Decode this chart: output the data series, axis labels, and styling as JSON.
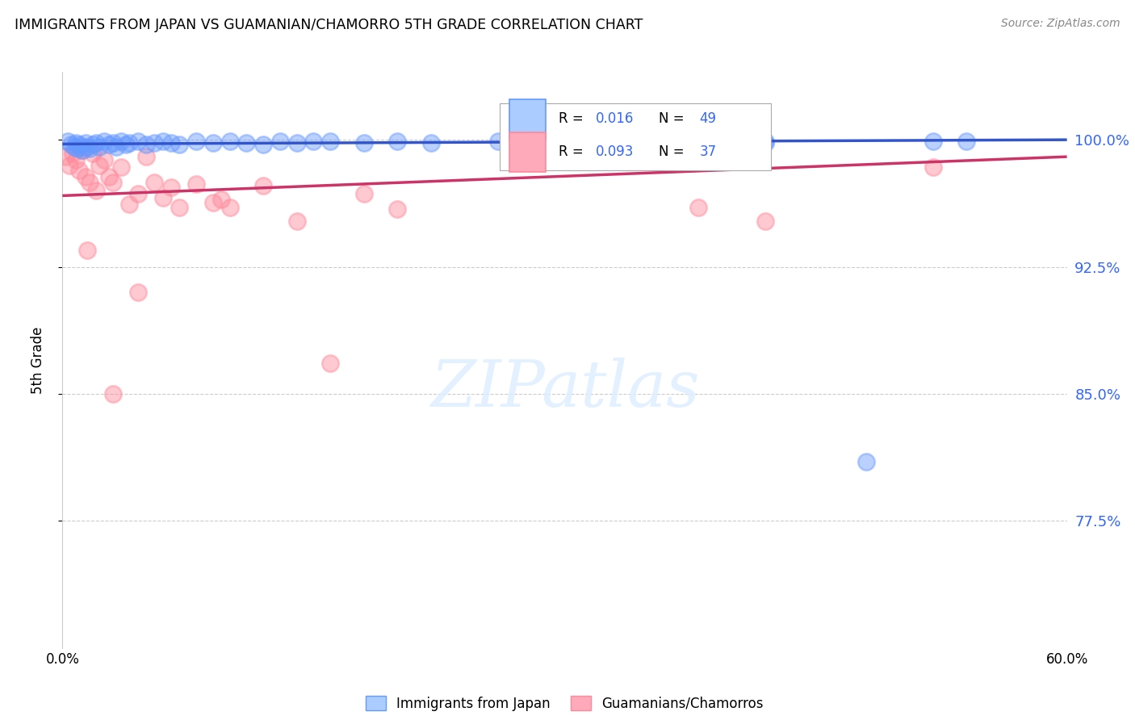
{
  "title": "IMMIGRANTS FROM JAPAN VS GUAMANIAN/CHAMORRO 5TH GRADE CORRELATION CHART",
  "source": "Source: ZipAtlas.com",
  "ylabel": "5th Grade",
  "watermark": "ZIPatlas",
  "legend_r_japan": "R = 0.016",
  "legend_n_japan": "N = 49",
  "legend_r_guam": "R = 0.093",
  "legend_n_guam": "N = 37",
  "ytick_labels": [
    "100.0%",
    "92.5%",
    "85.0%",
    "77.5%"
  ],
  "ytick_values": [
    1.0,
    0.925,
    0.85,
    0.775
  ],
  "xlim": [
    0.0,
    0.6
  ],
  "ylim": [
    0.7,
    1.04
  ],
  "japan_color": "#6699ff",
  "guam_color": "#ff8899",
  "japan_line_color": "#3355cc",
  "guam_line_color": "#cc3366",
  "japan_scatter_x": [
    0.003,
    0.005,
    0.007,
    0.008,
    0.009,
    0.01,
    0.011,
    0.012,
    0.014,
    0.015,
    0.016,
    0.018,
    0.02,
    0.022,
    0.025,
    0.028,
    0.03,
    0.032,
    0.035,
    0.038,
    0.04,
    0.045,
    0.05,
    0.055,
    0.06,
    0.065,
    0.07,
    0.08,
    0.09,
    0.1,
    0.11,
    0.12,
    0.14,
    0.16,
    0.18,
    0.2,
    0.22,
    0.28,
    0.32,
    0.38,
    0.42,
    0.48,
    0.52,
    0.35,
    0.26,
    0.15,
    0.13,
    0.42,
    0.54
  ],
  "japan_scatter_y": [
    0.999,
    0.997,
    0.996,
    0.998,
    0.995,
    0.997,
    0.996,
    0.994,
    0.998,
    0.996,
    0.995,
    0.997,
    0.998,
    0.996,
    0.999,
    0.997,
    0.998,
    0.996,
    0.999,
    0.997,
    0.998,
    0.999,
    0.997,
    0.998,
    0.999,
    0.998,
    0.997,
    0.999,
    0.998,
    0.999,
    0.998,
    0.997,
    0.998,
    0.999,
    0.998,
    0.999,
    0.998,
    0.999,
    0.998,
    0.999,
    0.998,
    0.81,
    0.999,
    0.999,
    0.999,
    0.999,
    0.999,
    0.999,
    0.999
  ],
  "guam_scatter_x": [
    0.002,
    0.004,
    0.006,
    0.008,
    0.01,
    0.012,
    0.014,
    0.016,
    0.018,
    0.02,
    0.022,
    0.025,
    0.028,
    0.03,
    0.035,
    0.04,
    0.045,
    0.05,
    0.055,
    0.06,
    0.065,
    0.07,
    0.08,
    0.09,
    0.1,
    0.12,
    0.14,
    0.16,
    0.18,
    0.2,
    0.38,
    0.42,
    0.52,
    0.095,
    0.03,
    0.045,
    0.015
  ],
  "guam_scatter_y": [
    0.99,
    0.985,
    0.992,
    0.988,
    0.982,
    0.994,
    0.978,
    0.975,
    0.992,
    0.97,
    0.985,
    0.988,
    0.978,
    0.975,
    0.984,
    0.962,
    0.968,
    0.99,
    0.975,
    0.966,
    0.972,
    0.96,
    0.974,
    0.963,
    0.96,
    0.973,
    0.952,
    0.868,
    0.968,
    0.959,
    0.96,
    0.952,
    0.984,
    0.965,
    0.85,
    0.91,
    0.935
  ],
  "japan_line_x0": 0.0,
  "japan_line_y0": 0.9975,
  "japan_line_x1": 0.6,
  "japan_line_y1": 1.0,
  "guam_line_x0": 0.0,
  "guam_line_y0": 0.967,
  "guam_line_x1": 0.6,
  "guam_line_y1": 0.99
}
